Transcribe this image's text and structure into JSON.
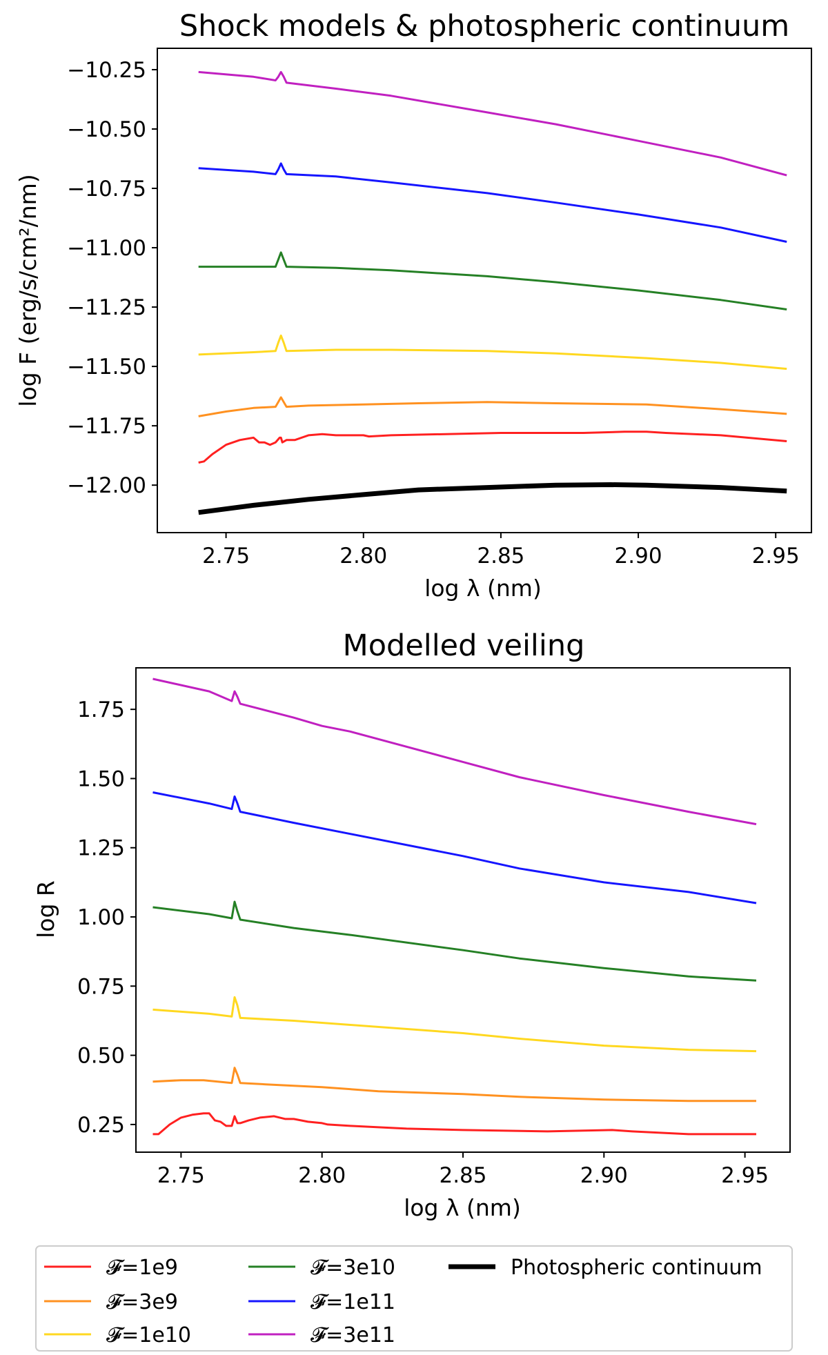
{
  "chart_data": [
    {
      "type": "line",
      "title": "Shock models & photospheric continuum",
      "xlabel": "log λ (nm)",
      "ylabel": "log F (erg/s/cm²/nm)",
      "xlim": [
        2.725,
        2.963
      ],
      "ylim": [
        -12.2,
        -10.16
      ],
      "xticks": [
        "2.75",
        "2.80",
        "2.85",
        "2.90",
        "2.95"
      ],
      "yticks": [
        "−10.25",
        "−10.50",
        "−10.75",
        "−11.00",
        "−11.25",
        "−11.50",
        "−11.75",
        "−12.00"
      ],
      "xtick_values": [
        2.75,
        2.8,
        2.85,
        2.9,
        2.95
      ],
      "ytick_values": [
        -10.25,
        -10.5,
        -10.75,
        -11.0,
        -11.25,
        -11.5,
        -11.75,
        -12.0
      ],
      "grid": false,
      "series": [
        {
          "name": "𝓕=1e9",
          "color": "#ff2020",
          "width": 3,
          "x": [
            2.74,
            2.742,
            2.745,
            2.75,
            2.755,
            2.76,
            2.762,
            2.764,
            2.766,
            2.768,
            2.7695,
            2.77,
            2.7705,
            2.772,
            2.775,
            2.78,
            2.785,
            2.79,
            2.795,
            2.8,
            2.802,
            2.81,
            2.83,
            2.85,
            2.87,
            2.88,
            2.895,
            2.903,
            2.91,
            2.93,
            2.954
          ],
          "y": [
            -11.905,
            -11.9,
            -11.87,
            -11.83,
            -11.81,
            -11.8,
            -11.82,
            -11.82,
            -11.83,
            -11.82,
            -11.8,
            -11.8,
            -11.82,
            -11.81,
            -11.81,
            -11.79,
            -11.785,
            -11.79,
            -11.79,
            -11.79,
            -11.795,
            -11.79,
            -11.785,
            -11.78,
            -11.78,
            -11.78,
            -11.775,
            -11.775,
            -11.78,
            -11.79,
            -11.815
          ]
        },
        {
          "name": "𝓕=3e9",
          "color": "#ff9120",
          "width": 3,
          "x": [
            2.74,
            2.75,
            2.76,
            2.768,
            2.769,
            2.77,
            2.771,
            2.772,
            2.78,
            2.8,
            2.82,
            2.845,
            2.87,
            2.903,
            2.93,
            2.954
          ],
          "y": [
            -11.71,
            -11.69,
            -11.675,
            -11.67,
            -11.65,
            -11.63,
            -11.65,
            -11.67,
            -11.665,
            -11.66,
            -11.655,
            -11.65,
            -11.655,
            -11.66,
            -11.68,
            -11.7
          ]
        },
        {
          "name": "𝓕=1e10",
          "color": "#ffd820",
          "width": 3,
          "x": [
            2.74,
            2.76,
            2.768,
            2.769,
            2.77,
            2.771,
            2.772,
            2.79,
            2.81,
            2.845,
            2.87,
            2.903,
            2.93,
            2.954
          ],
          "y": [
            -11.45,
            -11.44,
            -11.435,
            -11.4,
            -11.37,
            -11.4,
            -11.435,
            -11.43,
            -11.43,
            -11.435,
            -11.445,
            -11.465,
            -11.485,
            -11.51
          ]
        },
        {
          "name": "𝓕=3e10",
          "color": "#258025",
          "width": 3,
          "x": [
            2.74,
            2.76,
            2.768,
            2.769,
            2.77,
            2.771,
            2.772,
            2.79,
            2.81,
            2.845,
            2.87,
            2.9,
            2.93,
            2.954
          ],
          "y": [
            -11.08,
            -11.08,
            -11.08,
            -11.05,
            -11.02,
            -11.05,
            -11.08,
            -11.085,
            -11.095,
            -11.12,
            -11.145,
            -11.18,
            -11.22,
            -11.26
          ]
        },
        {
          "name": "𝓕=1e11",
          "color": "#1515ff",
          "width": 3,
          "x": [
            2.74,
            2.76,
            2.768,
            2.769,
            2.77,
            2.771,
            2.772,
            2.79,
            2.81,
            2.845,
            2.87,
            2.9,
            2.93,
            2.954
          ],
          "y": [
            -10.665,
            -10.68,
            -10.69,
            -10.67,
            -10.645,
            -10.67,
            -10.69,
            -10.7,
            -10.725,
            -10.77,
            -10.81,
            -10.86,
            -10.915,
            -10.975
          ]
        },
        {
          "name": "𝓕=3e11",
          "color": "#c020c0",
          "width": 3,
          "x": [
            2.74,
            2.76,
            2.768,
            2.769,
            2.77,
            2.771,
            2.772,
            2.79,
            2.81,
            2.845,
            2.87,
            2.9,
            2.93,
            2.954
          ],
          "y": [
            -10.26,
            -10.28,
            -10.295,
            -10.28,
            -10.26,
            -10.28,
            -10.305,
            -10.33,
            -10.36,
            -10.43,
            -10.48,
            -10.55,
            -10.62,
            -10.695
          ]
        },
        {
          "name": "Photospheric continuum",
          "color": "#000000",
          "width": 7,
          "x": [
            2.74,
            2.76,
            2.78,
            2.8,
            2.82,
            2.845,
            2.87,
            2.89,
            2.903,
            2.93,
            2.954
          ],
          "y": [
            -12.115,
            -12.085,
            -12.06,
            -12.04,
            -12.02,
            -12.01,
            -12.0,
            -11.998,
            -12.0,
            -12.01,
            -12.025
          ]
        }
      ]
    },
    {
      "type": "line",
      "title": "Modelled veiling",
      "xlabel": "log λ (nm)",
      "ylabel": "log R",
      "xlim": [
        2.734,
        2.966
      ],
      "ylim": [
        0.15,
        1.9
      ],
      "xticks": [
        "2.75",
        "2.80",
        "2.85",
        "2.90",
        "2.95"
      ],
      "yticks": [
        "0.25",
        "0.50",
        "0.75",
        "1.00",
        "1.25",
        "1.50",
        "1.75"
      ],
      "xtick_values": [
        2.75,
        2.8,
        2.85,
        2.9,
        2.95
      ],
      "ytick_values": [
        0.25,
        0.5,
        0.75,
        1.0,
        1.25,
        1.5,
        1.75
      ],
      "grid": false,
      "series": [
        {
          "name": "𝓕=1e9",
          "color": "#ff2020",
          "width": 3,
          "x": [
            2.74,
            2.742,
            2.746,
            2.75,
            2.754,
            2.758,
            2.76,
            2.762,
            2.764,
            2.766,
            2.768,
            2.769,
            2.77,
            2.771,
            2.774,
            2.778,
            2.783,
            2.787,
            2.79,
            2.795,
            2.8,
            2.802,
            2.81,
            2.83,
            2.85,
            2.88,
            2.903,
            2.91,
            2.93,
            2.954
          ],
          "y": [
            0.215,
            0.215,
            0.25,
            0.275,
            0.285,
            0.29,
            0.29,
            0.265,
            0.26,
            0.245,
            0.245,
            0.28,
            0.255,
            0.255,
            0.265,
            0.275,
            0.28,
            0.27,
            0.27,
            0.26,
            0.255,
            0.25,
            0.245,
            0.235,
            0.23,
            0.225,
            0.23,
            0.225,
            0.215,
            0.215
          ]
        },
        {
          "name": "𝓕=3e9",
          "color": "#ff9120",
          "width": 3,
          "x": [
            2.74,
            2.75,
            2.758,
            2.768,
            2.769,
            2.77,
            2.771,
            2.78,
            2.8,
            2.82,
            2.85,
            2.87,
            2.9,
            2.93,
            2.954
          ],
          "y": [
            0.405,
            0.41,
            0.41,
            0.4,
            0.455,
            0.43,
            0.4,
            0.395,
            0.385,
            0.37,
            0.36,
            0.35,
            0.34,
            0.335,
            0.335
          ]
        },
        {
          "name": "𝓕=1e10",
          "color": "#ffd820",
          "width": 3,
          "x": [
            2.74,
            2.76,
            2.768,
            2.769,
            2.77,
            2.771,
            2.79,
            2.81,
            2.85,
            2.87,
            2.9,
            2.93,
            2.954
          ],
          "y": [
            0.665,
            0.65,
            0.64,
            0.71,
            0.68,
            0.635,
            0.625,
            0.61,
            0.58,
            0.56,
            0.535,
            0.52,
            0.515
          ]
        },
        {
          "name": "𝓕=3e10",
          "color": "#258025",
          "width": 3,
          "x": [
            2.74,
            2.76,
            2.768,
            2.769,
            2.77,
            2.771,
            2.79,
            2.81,
            2.85,
            2.87,
            2.9,
            2.93,
            2.954
          ],
          "y": [
            1.035,
            1.01,
            0.995,
            1.055,
            1.02,
            0.99,
            0.96,
            0.935,
            0.88,
            0.85,
            0.815,
            0.785,
            0.77
          ]
        },
        {
          "name": "𝓕=1e11",
          "color": "#1515ff",
          "width": 3,
          "x": [
            2.74,
            2.76,
            2.768,
            2.769,
            2.77,
            2.771,
            2.79,
            2.81,
            2.85,
            2.87,
            2.9,
            2.93,
            2.954
          ],
          "y": [
            1.45,
            1.41,
            1.39,
            1.435,
            1.41,
            1.38,
            1.34,
            1.3,
            1.22,
            1.175,
            1.125,
            1.09,
            1.05
          ]
        },
        {
          "name": "𝓕=3e11",
          "color": "#c020c0",
          "width": 3,
          "x": [
            2.74,
            2.76,
            2.768,
            2.769,
            2.77,
            2.771,
            2.79,
            2.8,
            2.81,
            2.85,
            2.87,
            2.9,
            2.93,
            2.954
          ],
          "y": [
            1.86,
            1.815,
            1.78,
            1.815,
            1.795,
            1.77,
            1.72,
            1.69,
            1.67,
            1.56,
            1.505,
            1.44,
            1.38,
            1.335
          ]
        }
      ]
    }
  ],
  "legend": {
    "placement": "bottom",
    "items": [
      {
        "label": "𝓕=1e9",
        "color": "#ff2020",
        "width": 3
      },
      {
        "label": "𝓕=3e9",
        "color": "#ff9120",
        "width": 3
      },
      {
        "label": "𝓕=1e10",
        "color": "#ffd820",
        "width": 3
      },
      {
        "label": "𝓕=3e10",
        "color": "#258025",
        "width": 3
      },
      {
        "label": "𝓕=1e11",
        "color": "#1515ff",
        "width": 3
      },
      {
        "label": "𝓕=3e11",
        "color": "#c020c0",
        "width": 3
      },
      {
        "label": "Photospheric continuum",
        "color": "#000000",
        "width": 7
      }
    ]
  }
}
